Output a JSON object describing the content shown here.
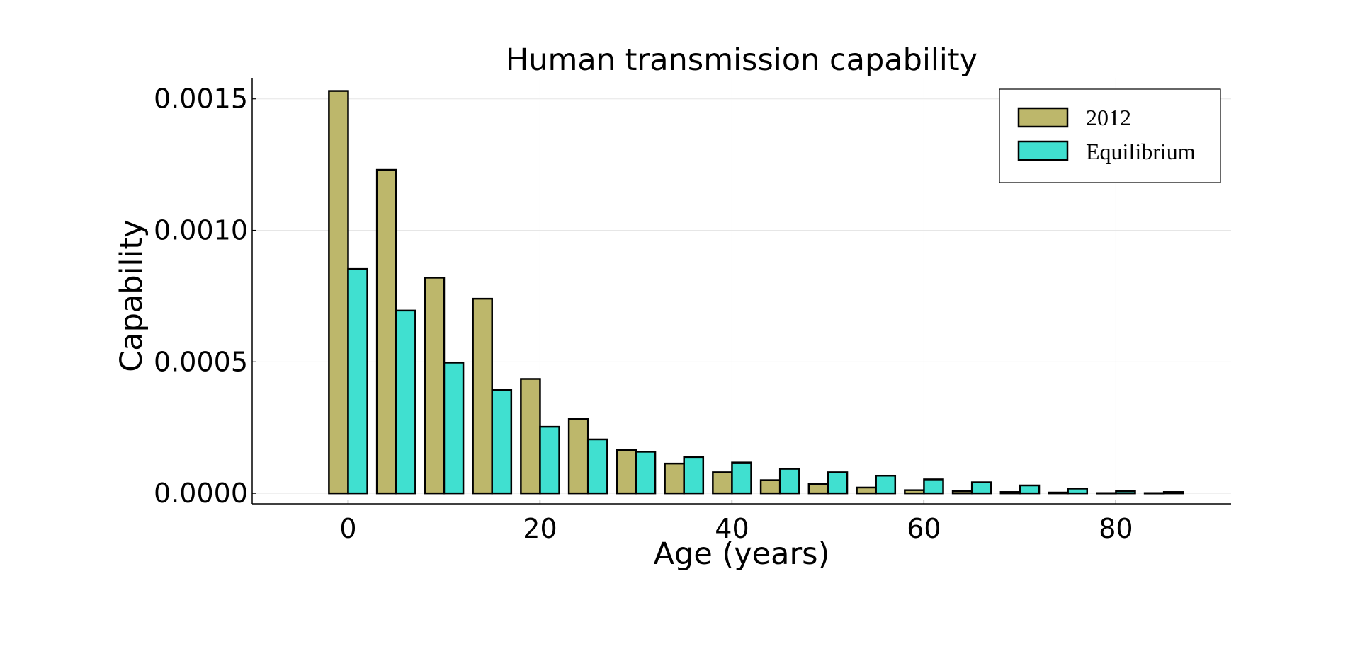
{
  "chart_data": {
    "type": "bar",
    "title": "Human transmission capability",
    "xlabel": "Age (years)",
    "ylabel": "Capability",
    "xlim": [
      -10,
      92
    ],
    "ylim": [
      -4e-05,
      0.00158
    ],
    "xticks": [
      0,
      20,
      40,
      60,
      80
    ],
    "xtick_labels": [
      "0",
      "20",
      "40",
      "60",
      "80"
    ],
    "yticks": [
      0,
      0.0005,
      0.001,
      0.0015
    ],
    "ytick_labels": [
      "0.0000",
      "0.0005",
      "0.0010",
      "0.0015"
    ],
    "grid": true,
    "legend_position": "top-right",
    "x": [
      0,
      5,
      10,
      15,
      20,
      25,
      30,
      35,
      40,
      45,
      50,
      55,
      60,
      65,
      70,
      75,
      80,
      85
    ],
    "series": [
      {
        "name": "2012",
        "color": "#bdb76b",
        "values": [
          0.00153,
          0.00123,
          0.00082,
          0.00074,
          0.000435,
          0.000283,
          0.000165,
          0.000113,
          8e-05,
          5e-05,
          3.5e-05,
          2.2e-05,
          1.2e-05,
          8e-06,
          5e-06,
          3e-06,
          1e-06,
          1e-06
        ]
      },
      {
        "name": "Equilibrium",
        "color": "#40e0d0",
        "values": [
          0.000853,
          0.000695,
          0.000497,
          0.000393,
          0.000253,
          0.000205,
          0.000158,
          0.000138,
          0.000117,
          9.3e-05,
          8e-05,
          6.7e-05,
          5.3e-05,
          4.2e-05,
          3e-05,
          1.8e-05,
          8e-06,
          5e-06
        ]
      }
    ]
  }
}
